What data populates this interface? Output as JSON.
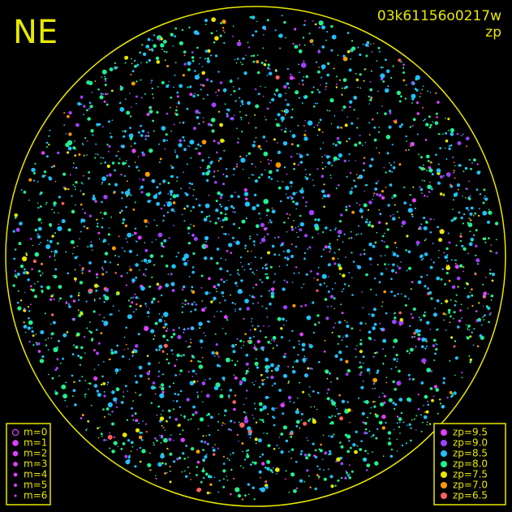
{
  "corner_label": "NE",
  "image_id": "03k61156o0217w",
  "mode": "zp",
  "magnitude_legend": [
    "m=0",
    "m=1",
    "m=2",
    "m=3",
    "m=4",
    "m=5",
    "m=6"
  ],
  "zp_legend": [
    {
      "label": "zp=9.5",
      "color": "#e040ff"
    },
    {
      "label": "zp=9.0",
      "color": "#a040ff"
    },
    {
      "label": "zp=8.5",
      "color": "#20c0ff"
    },
    {
      "label": "zp=8.0",
      "color": "#20f090"
    },
    {
      "label": "zp=7.5",
      "color": "#e8e800"
    },
    {
      "label": "zp=7.0",
      "color": "#ff9900"
    },
    {
      "label": "zp=6.5",
      "color": "#ff6060"
    }
  ]
}
